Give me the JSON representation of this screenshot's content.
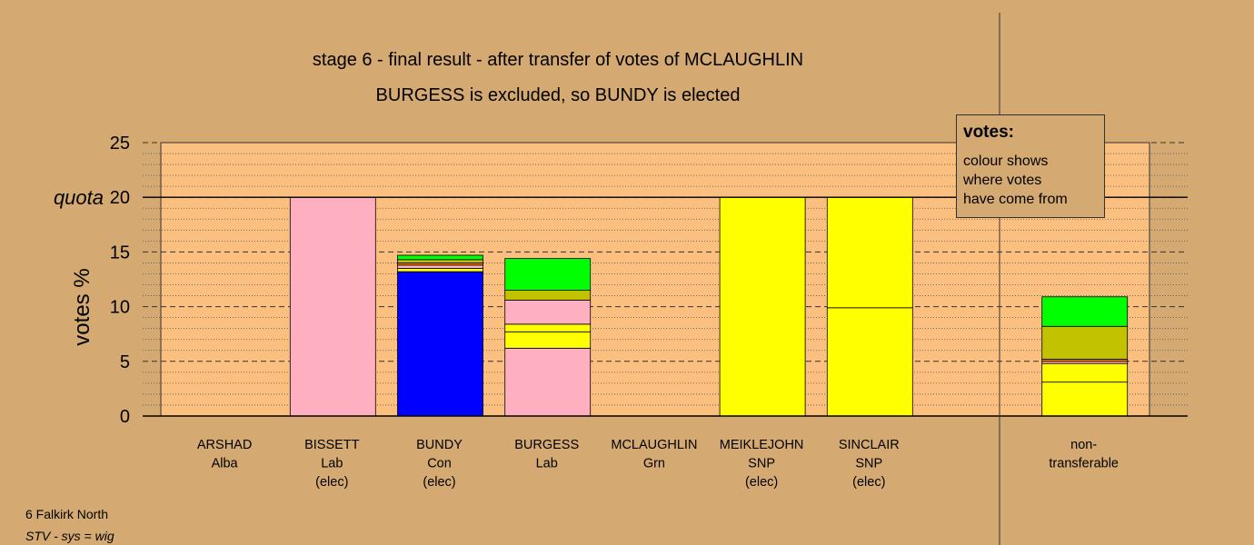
{
  "chart_data": {
    "type": "bar",
    "stacked": true,
    "title": "stage 6 - final result - after transfer of votes of MCLAUGHLIN",
    "subtitle": "BURGESS is excluded, so BUNDY is elected",
    "ylabel": "votes %",
    "ylim": [
      0,
      25
    ],
    "yticks": [
      0,
      5,
      10,
      15,
      20,
      25
    ],
    "quota": 20,
    "quota_label": "quota",
    "grid": true,
    "categories": [
      {
        "name": "ARSHAD",
        "party": "Alba",
        "status": ""
      },
      {
        "name": "BISSETT",
        "party": "Lab",
        "status": "(elec)"
      },
      {
        "name": "BUNDY",
        "party": "Con",
        "status": "(elec)"
      },
      {
        "name": "BURGESS",
        "party": "Lab",
        "status": ""
      },
      {
        "name": "MCLAUGHLIN",
        "party": "Grn",
        "status": ""
      },
      {
        "name": "MEIKLEJOHN",
        "party": "SNP",
        "status": "(elec)"
      },
      {
        "name": "SINCLAIR",
        "party": "SNP",
        "status": "(elec)"
      },
      {
        "name": "",
        "party": "",
        "status": ""
      },
      {
        "name": "non-",
        "party": "transferable",
        "status": ""
      }
    ],
    "stacks": [
      [],
      [
        {
          "value": 20.0,
          "color": "#ffb0c0"
        }
      ],
      [
        {
          "value": 13.2,
          "color": "#0000ff"
        },
        {
          "value": 0.3,
          "color": "#ffff00"
        },
        {
          "value": 0.3,
          "color": "#ffb0c0"
        },
        {
          "value": 0.2,
          "color": "#ff7f00"
        },
        {
          "value": 0.3,
          "color": "#c2c200"
        },
        {
          "value": 0.4,
          "color": "#00ff00"
        }
      ],
      [
        {
          "value": 6.2,
          "color": "#ffb0c0"
        },
        {
          "value": 1.5,
          "color": "#ffff00"
        },
        {
          "value": 0.7,
          "color": "#ffff00"
        },
        {
          "value": 2.2,
          "color": "#ffb0c0"
        },
        {
          "value": 0.9,
          "color": "#c2c200"
        },
        {
          "value": 2.9,
          "color": "#00ff00"
        }
      ],
      [],
      [
        {
          "value": 20.0,
          "color": "#ffff00"
        }
      ],
      [
        {
          "value": 9.9,
          "color": "#ffff00"
        },
        {
          "value": 10.1,
          "color": "#ffff00"
        }
      ],
      [],
      [
        {
          "value": 3.1,
          "color": "#ffff00"
        },
        {
          "value": 1.7,
          "color": "#ffff00"
        },
        {
          "value": 0.2,
          "color": "#ffb0c0"
        },
        {
          "value": 0.2,
          "color": "#ff7f00"
        },
        {
          "value": 3.0,
          "color": "#c2c200"
        },
        {
          "value": 2.7,
          "color": "#00ff00"
        }
      ]
    ]
  },
  "legend": {
    "title": "votes:",
    "lines": [
      "colour shows",
      "where votes",
      "have come from"
    ]
  },
  "footer": {
    "constituency": "6 Falkirk North",
    "system": "STV - sys = wig"
  },
  "colors": {
    "background": "#d4a972",
    "plot_area": "#fbbf80"
  }
}
